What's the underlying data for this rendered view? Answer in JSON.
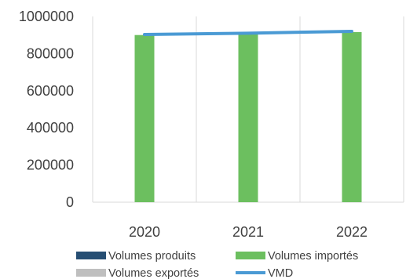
{
  "chart_data": {
    "type": "bar",
    "categories": [
      "2020",
      "2021",
      "2022"
    ],
    "series": [
      {
        "name": "Volumes produits",
        "kind": "bar",
        "color": "#264e73",
        "values": [
          0,
          0,
          0
        ]
      },
      {
        "name": "Volumes importés",
        "kind": "bar",
        "color": "#6cbf5f",
        "values": [
          900000,
          905000,
          916000
        ]
      },
      {
        "name": "Volumes exportés",
        "kind": "bar",
        "color": "#bfbfbf",
        "values": [
          0,
          0,
          0
        ]
      },
      {
        "name": "VMD",
        "kind": "line",
        "color": "#4a9ad4",
        "values": [
          903000,
          910000,
          920000
        ]
      }
    ],
    "yticks": [
      "0",
      "200000",
      "400000",
      "600000",
      "800000",
      "1000000"
    ],
    "ylim": [
      0,
      1000000
    ],
    "grid": {
      "vertical": true,
      "horizontal": false
    },
    "legend_position": "bottom"
  }
}
